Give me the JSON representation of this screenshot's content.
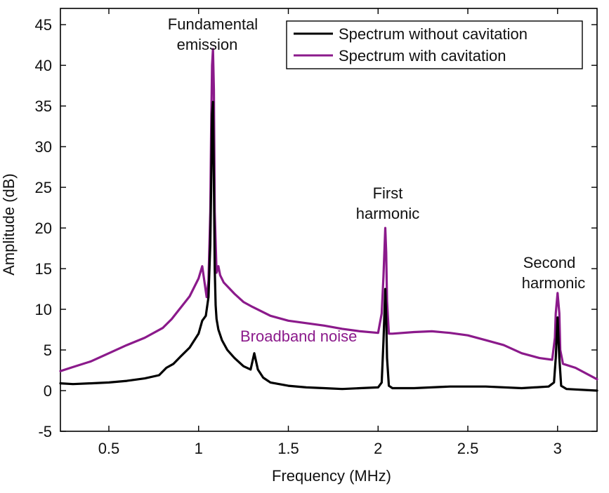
{
  "chart_data": {
    "type": "line",
    "xlabel": "Frequency (MHz)",
    "ylabel": "Amplitude (dB)",
    "xlim": [
      0.23,
      3.22
    ],
    "ylim": [
      -5,
      47
    ],
    "xticks": [
      0.5,
      1,
      1.5,
      2,
      2.5,
      3
    ],
    "xtick_labels": [
      "0.5",
      "1",
      "1.5",
      "2",
      "2.5",
      "3"
    ],
    "yticks": [
      -5,
      0,
      5,
      10,
      15,
      20,
      25,
      30,
      35,
      40,
      45
    ],
    "ytick_labels": [
      "-5",
      "0",
      "5",
      "10",
      "15",
      "20",
      "25",
      "30",
      "35",
      "40",
      "45"
    ],
    "legend": [
      "Spectrum without cavitation",
      "Spectrum with cavitation"
    ],
    "colors": {
      "without": "#000000",
      "with": "#8b1a8b"
    },
    "annotations": {
      "fundamental_line1": "Fundamental",
      "fundamental_line2": "emission",
      "first_line1": "First",
      "first_line2": "harmonic",
      "second_line1": "Second",
      "second_line2": "harmonic",
      "broadband": "Broadband noise"
    },
    "series": [
      {
        "name": "Spectrum without cavitation",
        "x": [
          0.23,
          0.3,
          0.4,
          0.5,
          0.6,
          0.7,
          0.78,
          0.82,
          0.86,
          0.9,
          0.95,
          1.0,
          1.02,
          1.04,
          1.055,
          1.065,
          1.07,
          1.075,
          1.08,
          1.085,
          1.09,
          1.095,
          1.1,
          1.11,
          1.13,
          1.16,
          1.2,
          1.25,
          1.29,
          1.31,
          1.33,
          1.36,
          1.4,
          1.5,
          1.6,
          1.7,
          1.8,
          1.9,
          2.0,
          2.02,
          2.03,
          2.04,
          2.045,
          2.05,
          2.06,
          2.08,
          2.2,
          2.4,
          2.6,
          2.8,
          2.95,
          2.98,
          2.99,
          3.0,
          3.01,
          3.02,
          3.05,
          3.22
        ],
        "values": [
          0.9,
          0.8,
          0.9,
          1.0,
          1.2,
          1.5,
          1.9,
          2.8,
          3.3,
          4.2,
          5.3,
          7.0,
          8.6,
          9.2,
          11.5,
          18.0,
          25.0,
          34.0,
          35.5,
          26.0,
          15.0,
          10.5,
          8.8,
          7.5,
          6.2,
          5.0,
          4.0,
          3.0,
          2.6,
          4.6,
          2.6,
          1.6,
          1.0,
          0.6,
          0.4,
          0.3,
          0.2,
          0.3,
          0.4,
          1.0,
          6.0,
          12.5,
          9.0,
          4.0,
          0.6,
          0.3,
          0.3,
          0.5,
          0.5,
          0.3,
          0.5,
          1.0,
          4.0,
          9.0,
          4.0,
          0.6,
          0.2,
          0.0
        ]
      },
      {
        "name": "Spectrum with cavitation",
        "x": [
          0.23,
          0.3,
          0.4,
          0.5,
          0.6,
          0.7,
          0.8,
          0.85,
          0.9,
          0.95,
          1.0,
          1.02,
          1.035,
          1.045,
          1.055,
          1.065,
          1.07,
          1.075,
          1.08,
          1.085,
          1.09,
          1.1,
          1.11,
          1.12,
          1.14,
          1.17,
          1.2,
          1.25,
          1.3,
          1.4,
          1.5,
          1.6,
          1.7,
          1.8,
          1.9,
          2.0,
          2.02,
          2.03,
          2.04,
          2.045,
          2.05,
          2.06,
          2.08,
          2.2,
          2.3,
          2.4,
          2.5,
          2.6,
          2.7,
          2.8,
          2.9,
          2.97,
          2.985,
          2.99,
          3.0,
          3.01,
          3.015,
          3.03,
          3.1,
          3.22
        ],
        "values": [
          2.4,
          2.9,
          3.6,
          4.6,
          5.6,
          6.5,
          7.7,
          8.8,
          10.2,
          11.6,
          13.8,
          15.3,
          13.0,
          11.5,
          13.5,
          22.0,
          32.0,
          40.0,
          42.0,
          37.0,
          22.0,
          14.5,
          15.3,
          14.2,
          13.3,
          12.6,
          11.9,
          10.9,
          10.3,
          9.2,
          8.6,
          8.3,
          8.0,
          7.6,
          7.3,
          7.1,
          9.5,
          14.0,
          20.0,
          17.0,
          11.0,
          7.0,
          7.0,
          7.2,
          7.3,
          7.1,
          6.8,
          6.2,
          5.6,
          4.6,
          4.0,
          3.8,
          6.5,
          9.5,
          12.0,
          9.5,
          5.0,
          3.3,
          2.8,
          1.4
        ]
      }
    ]
  }
}
